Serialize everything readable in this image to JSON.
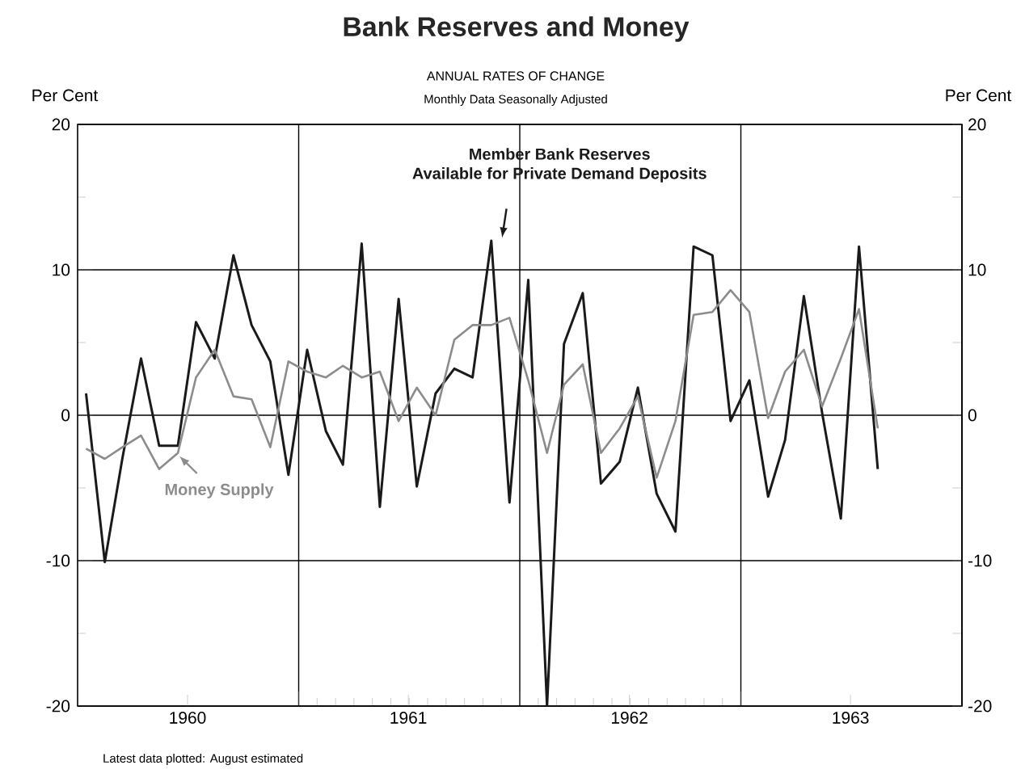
{
  "chart_data": {
    "type": "line",
    "title": "Bank Reserves and Money",
    "subtitle": "ANNUAL RATES OF CHANGE",
    "annotations": [
      "Monthly Data Seasonally Adjusted",
      "Latest data plotted: August estimated"
    ],
    "ylabel": "Per Cent",
    "y2label": "Per Cent",
    "x": [
      "1960-01-15",
      "1960-02-15",
      "1960-03-15",
      "1960-04-15",
      "1960-05-15",
      "1960-06-15",
      "1960-07-15",
      "1960-08-15",
      "1960-09-15",
      "1960-10-15",
      "1960-11-15",
      "1960-12-15",
      "1961-01-15",
      "1961-02-15",
      "1961-03-15",
      "1961-04-15",
      "1961-05-15",
      "1961-06-15",
      "1961-07-15",
      "1961-08-15",
      "1961-09-15",
      "1961-10-15",
      "1961-11-15",
      "1961-12-15",
      "1962-01-15",
      "1962-02-15",
      "1962-03-15",
      "1962-04-15",
      "1962-05-15",
      "1962-06-15",
      "1962-07-15",
      "1962-08-15",
      "1962-09-15",
      "1962-10-15",
      "1962-11-15",
      "1962-12-15",
      "1963-01-15",
      "1963-02-15",
      "1963-03-15",
      "1963-04-15",
      "1963-05-15",
      "1963-06-15",
      "1963-07-15",
      "1963-08-15"
    ],
    "series": [
      {
        "name": "Member Bank Reserves Available for Private Demand Deposits",
        "color": "#1a1a1a",
        "values": [
          1.5,
          -10.1,
          -3.0,
          3.9,
          -2.1,
          -2.1,
          6.4,
          3.9,
          11.0,
          6.2,
          3.7,
          -4.1,
          4.5,
          -1.1,
          -3.4,
          11.8,
          -6.3,
          8.0,
          -4.9,
          1.5,
          3.2,
          2.6,
          12.0,
          -6.0,
          9.3,
          -20,
          4.9,
          8.4,
          -4.7,
          -3.2,
          1.9,
          -5.4,
          -8.0,
          11.6,
          11.0,
          -0.4,
          2.4,
          -5.6,
          -1.7,
          8.2,
          0.2,
          -7.1,
          11.6,
          -3.7
        ]
      },
      {
        "name": "Money Supply",
        "color": "#8c8c8c",
        "values": [
          -2.3,
          -3.0,
          -2.2,
          -1.4,
          -3.7,
          -2.6,
          2.6,
          4.5,
          1.3,
          1.1,
          -2.2,
          3.7,
          3.0,
          2.6,
          3.4,
          2.6,
          3.0,
          -0.4,
          1.9,
          0,
          5.2,
          6.2,
          6.2,
          6.7,
          2.4,
          -2.6,
          2.1,
          3.5,
          -2.6,
          -0.9,
          1.3,
          -4.3,
          -0.4,
          6.9,
          7.1,
          8.6,
          7.1,
          -0.2,
          3.0,
          4.5,
          0.6,
          3.9,
          7.3,
          -0.9
        ]
      }
    ],
    "xlim": [
      "1960-01-01",
      "1964-01-01"
    ],
    "xticks": [
      {
        "value": "1960-07-01",
        "label": "1960"
      },
      {
        "value": "1961-01-01",
        "label": null
      },
      {
        "value": "1961-07-01",
        "label": "1961"
      },
      {
        "value": "1962-01-01",
        "label": null
      },
      {
        "value": "1962-07-01",
        "label": "1962"
      },
      {
        "value": "1963-01-01",
        "label": null
      },
      {
        "value": "1963-07-01",
        "label": "1963"
      }
    ],
    "ylim": [
      -20,
      20
    ],
    "yticks": [
      -20,
      -10,
      0,
      10,
      20
    ],
    "y2lim": [
      -20,
      20
    ],
    "y2ticks": [
      -20,
      -10,
      0,
      10,
      20
    ],
    "grid": true
  }
}
